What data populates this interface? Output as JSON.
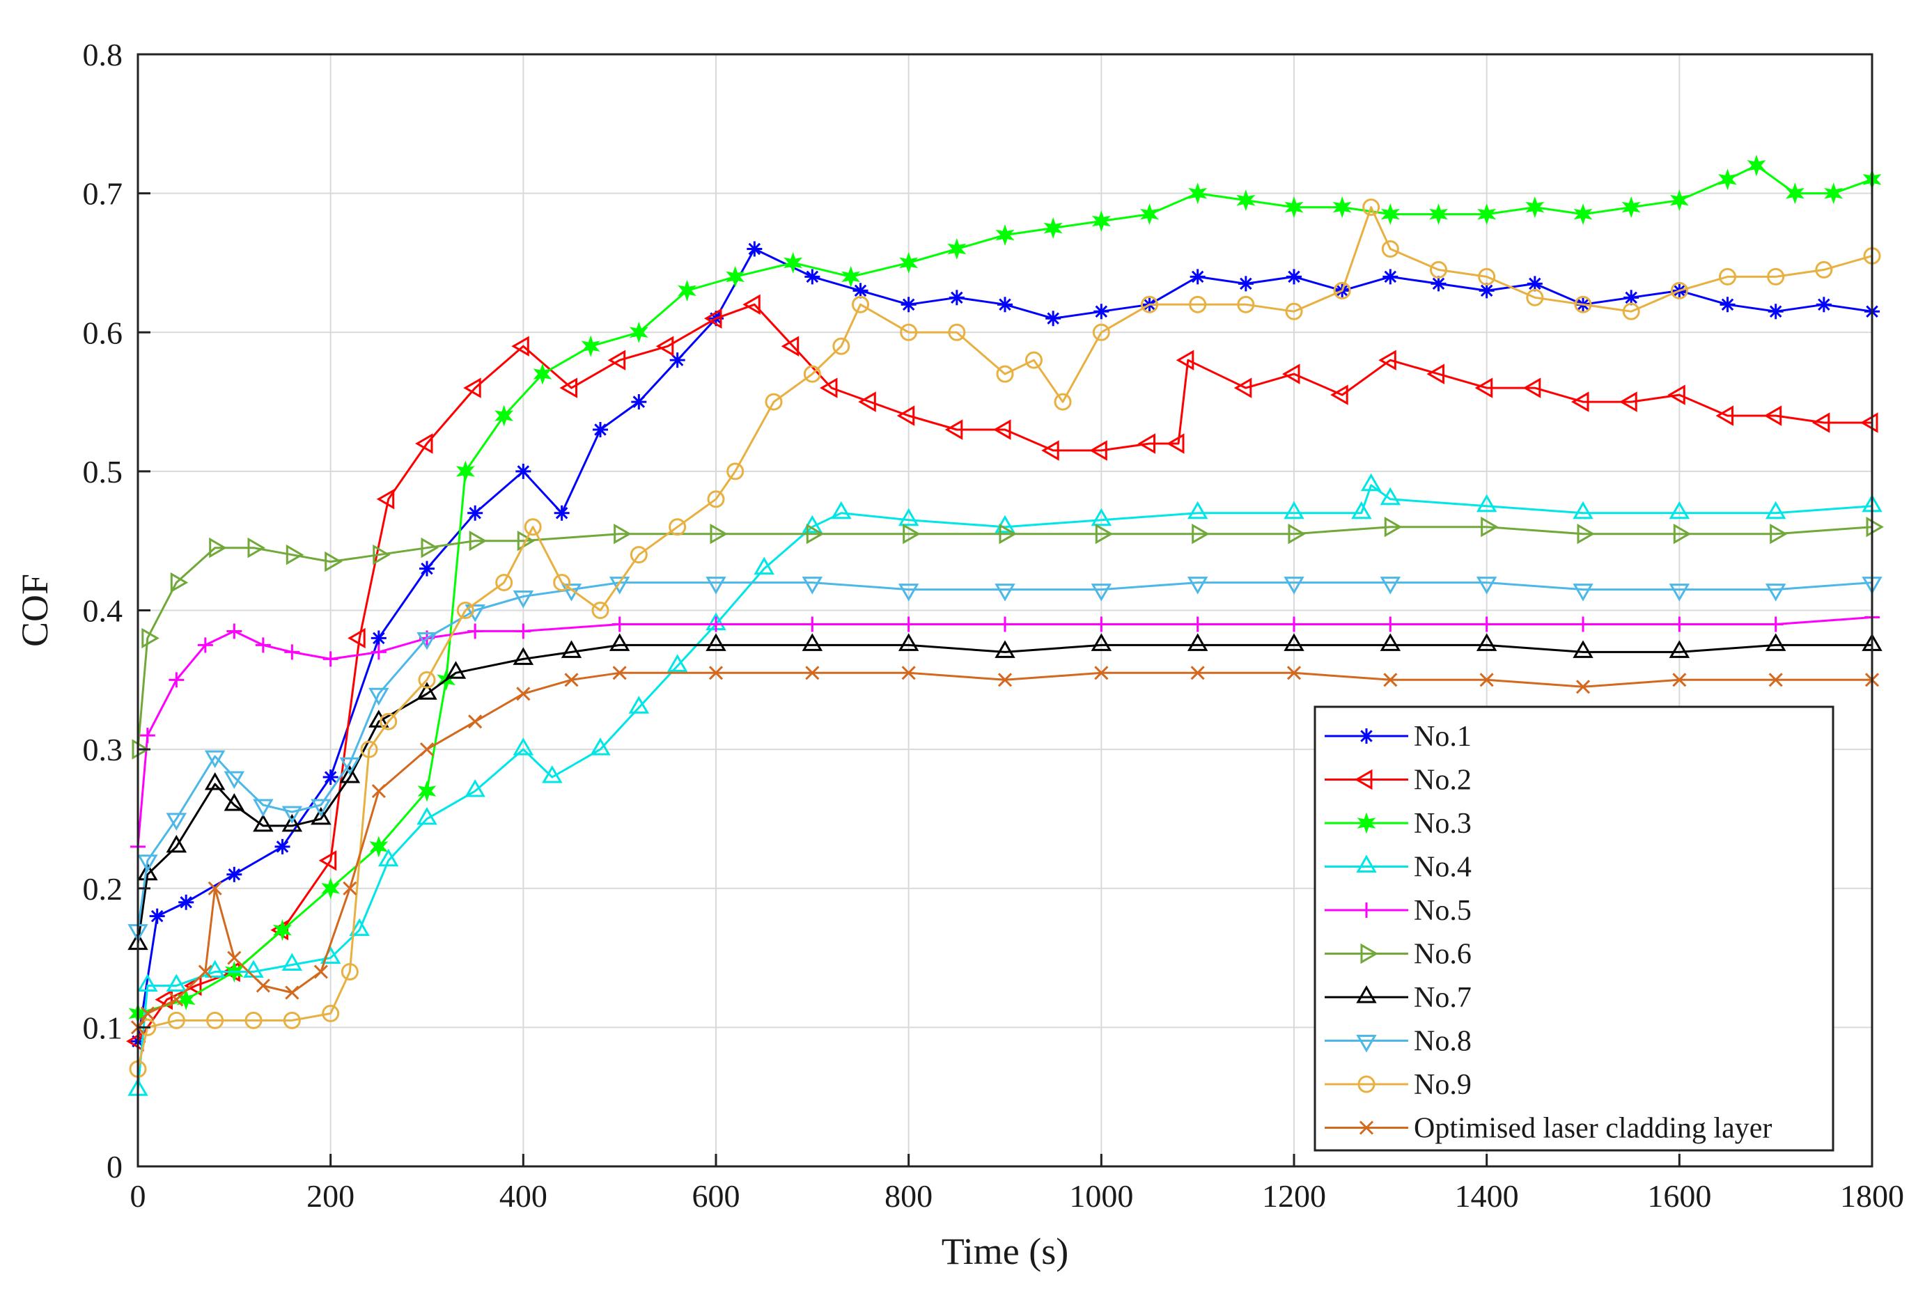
{
  "chart_data": {
    "type": "line",
    "title": "",
    "xlabel": "Time (s)",
    "ylabel": "COF",
    "xlim": [
      0,
      1800
    ],
    "ylim": [
      0,
      0.8
    ],
    "grid": true,
    "legend_position": "bottom-right",
    "x_ticks": [
      0,
      200,
      400,
      600,
      800,
      1000,
      1200,
      1400,
      1600,
      1800
    ],
    "x_tick_labels": [
      "0",
      "200",
      "400",
      "600",
      "800",
      "1000",
      "1200",
      "1400",
      "1600",
      "1800"
    ],
    "y_ticks": [
      0,
      0.1,
      0.2,
      0.3,
      0.4,
      0.5,
      0.6,
      0.7,
      0.8
    ],
    "y_tick_labels": [
      "0",
      "0.1",
      "0.2",
      "0.3",
      "0.4",
      "0.5",
      "0.6",
      "0.7",
      "0.8"
    ],
    "series": [
      {
        "name": "No.1",
        "color": "#0000ff",
        "marker": "star",
        "x": [
          0,
          20,
          50,
          100,
          150,
          200,
          250,
          300,
          350,
          400,
          440,
          480,
          520,
          560,
          600,
          640,
          700,
          750,
          800,
          850,
          900,
          950,
          1000,
          1050,
          1100,
          1150,
          1200,
          1250,
          1300,
          1350,
          1400,
          1450,
          1500,
          1550,
          1600,
          1650,
          1700,
          1750,
          1800
        ],
        "y": [
          0.09,
          0.18,
          0.19,
          0.21,
          0.23,
          0.28,
          0.38,
          0.43,
          0.47,
          0.5,
          0.47,
          0.53,
          0.55,
          0.58,
          0.61,
          0.66,
          0.64,
          0.63,
          0.62,
          0.625,
          0.62,
          0.61,
          0.615,
          0.62,
          0.64,
          0.635,
          0.64,
          0.63,
          0.64,
          0.635,
          0.63,
          0.635,
          0.62,
          0.625,
          0.63,
          0.62,
          0.615,
          0.62,
          0.615
        ]
      },
      {
        "name": "No.2",
        "color": "#ff0000",
        "marker": "triangle-left",
        "x": [
          0,
          30,
          60,
          100,
          150,
          200,
          230,
          260,
          300,
          350,
          400,
          450,
          500,
          550,
          600,
          640,
          680,
          720,
          760,
          800,
          850,
          900,
          950,
          1000,
          1050,
          1080,
          1090,
          1150,
          1200,
          1250,
          1300,
          1350,
          1400,
          1450,
          1500,
          1550,
          1600,
          1650,
          1700,
          1750,
          1800
        ],
        "y": [
          0.09,
          0.12,
          0.13,
          0.14,
          0.17,
          0.22,
          0.38,
          0.48,
          0.52,
          0.56,
          0.59,
          0.56,
          0.58,
          0.59,
          0.61,
          0.62,
          0.59,
          0.56,
          0.55,
          0.54,
          0.53,
          0.53,
          0.515,
          0.515,
          0.52,
          0.52,
          0.58,
          0.56,
          0.57,
          0.555,
          0.58,
          0.57,
          0.56,
          0.56,
          0.55,
          0.55,
          0.555,
          0.54,
          0.54,
          0.535,
          0.535
        ]
      },
      {
        "name": "No.3",
        "color": "#00ff00",
        "marker": "hexagram",
        "x": [
          0,
          50,
          100,
          150,
          200,
          250,
          300,
          320,
          340,
          380,
          420,
          470,
          520,
          570,
          620,
          680,
          740,
          800,
          850,
          900,
          950,
          1000,
          1050,
          1100,
          1150,
          1200,
          1250,
          1300,
          1350,
          1400,
          1450,
          1500,
          1550,
          1600,
          1650,
          1680,
          1720,
          1760,
          1800
        ],
        "y": [
          0.11,
          0.12,
          0.14,
          0.17,
          0.2,
          0.23,
          0.27,
          0.35,
          0.5,
          0.54,
          0.57,
          0.59,
          0.6,
          0.63,
          0.64,
          0.65,
          0.64,
          0.65,
          0.66,
          0.67,
          0.675,
          0.68,
          0.685,
          0.7,
          0.695,
          0.69,
          0.69,
          0.685,
          0.685,
          0.685,
          0.69,
          0.685,
          0.69,
          0.695,
          0.71,
          0.72,
          0.7,
          0.7,
          0.71
        ]
      },
      {
        "name": "No.4",
        "color": "#00e6e6",
        "marker": "triangle-up",
        "x": [
          0,
          10,
          40,
          80,
          120,
          160,
          200,
          230,
          260,
          300,
          350,
          400,
          430,
          480,
          520,
          560,
          600,
          650,
          700,
          730,
          800,
          900,
          1000,
          1100,
          1200,
          1270,
          1280,
          1300,
          1400,
          1500,
          1600,
          1700,
          1800
        ],
        "y": [
          0.055,
          0.13,
          0.13,
          0.14,
          0.14,
          0.145,
          0.15,
          0.17,
          0.22,
          0.25,
          0.27,
          0.3,
          0.28,
          0.3,
          0.33,
          0.36,
          0.39,
          0.43,
          0.46,
          0.47,
          0.465,
          0.46,
          0.465,
          0.47,
          0.47,
          0.47,
          0.49,
          0.48,
          0.475,
          0.47,
          0.47,
          0.47,
          0.475
        ]
      },
      {
        "name": "No.5",
        "color": "#ff00ff",
        "marker": "plus",
        "x": [
          0,
          10,
          40,
          70,
          100,
          130,
          160,
          200,
          250,
          300,
          350,
          400,
          500,
          600,
          700,
          800,
          900,
          1000,
          1100,
          1200,
          1300,
          1400,
          1500,
          1600,
          1700,
          1800
        ],
        "y": [
          0.23,
          0.31,
          0.35,
          0.375,
          0.385,
          0.375,
          0.37,
          0.365,
          0.37,
          0.38,
          0.385,
          0.385,
          0.39,
          0.39,
          0.39,
          0.39,
          0.39,
          0.39,
          0.39,
          0.39,
          0.39,
          0.39,
          0.39,
          0.39,
          0.39,
          0.395
        ]
      },
      {
        "name": "No.6",
        "color": "#70a93a",
        "marker": "triangle-right",
        "x": [
          0,
          10,
          40,
          80,
          120,
          160,
          200,
          250,
          300,
          350,
          400,
          500,
          600,
          700,
          800,
          900,
          1000,
          1100,
          1200,
          1300,
          1400,
          1500,
          1600,
          1700,
          1800
        ],
        "y": [
          0.3,
          0.38,
          0.42,
          0.445,
          0.445,
          0.44,
          0.435,
          0.44,
          0.445,
          0.45,
          0.45,
          0.455,
          0.455,
          0.455,
          0.455,
          0.455,
          0.455,
          0.455,
          0.455,
          0.46,
          0.46,
          0.455,
          0.455,
          0.455,
          0.46
        ]
      },
      {
        "name": "No.7",
        "color": "#000000",
        "marker": "triangle-up",
        "x": [
          0,
          10,
          40,
          80,
          100,
          130,
          160,
          190,
          220,
          250,
          300,
          330,
          400,
          450,
          500,
          600,
          700,
          800,
          900,
          1000,
          1100,
          1200,
          1300,
          1400,
          1500,
          1600,
          1700,
          1800
        ],
        "y": [
          0.16,
          0.21,
          0.23,
          0.275,
          0.26,
          0.245,
          0.245,
          0.25,
          0.28,
          0.32,
          0.34,
          0.355,
          0.365,
          0.37,
          0.375,
          0.375,
          0.375,
          0.375,
          0.37,
          0.375,
          0.375,
          0.375,
          0.375,
          0.375,
          0.37,
          0.37,
          0.375,
          0.375
        ]
      },
      {
        "name": "No.8",
        "color": "#4db8e8",
        "marker": "triangle-down",
        "x": [
          0,
          10,
          40,
          80,
          100,
          130,
          160,
          190,
          220,
          250,
          300,
          350,
          400,
          450,
          500,
          600,
          700,
          800,
          900,
          1000,
          1100,
          1200,
          1300,
          1400,
          1500,
          1600,
          1700,
          1800
        ],
        "y": [
          0.17,
          0.22,
          0.25,
          0.295,
          0.28,
          0.26,
          0.255,
          0.26,
          0.29,
          0.34,
          0.38,
          0.4,
          0.41,
          0.415,
          0.42,
          0.42,
          0.42,
          0.415,
          0.415,
          0.415,
          0.42,
          0.42,
          0.42,
          0.42,
          0.415,
          0.415,
          0.415,
          0.42
        ]
      },
      {
        "name": "No.9",
        "color": "#e8b040",
        "marker": "circle",
        "x": [
          0,
          10,
          40,
          80,
          120,
          160,
          200,
          220,
          240,
          260,
          300,
          340,
          380,
          410,
          440,
          480,
          520,
          560,
          600,
          620,
          660,
          700,
          730,
          750,
          800,
          850,
          900,
          930,
          960,
          1000,
          1050,
          1100,
          1150,
          1200,
          1250,
          1280,
          1300,
          1350,
          1400,
          1450,
          1500,
          1550,
          1600,
          1650,
          1700,
          1750,
          1800
        ],
        "y": [
          0.07,
          0.1,
          0.105,
          0.105,
          0.105,
          0.105,
          0.11,
          0.14,
          0.3,
          0.32,
          0.35,
          0.4,
          0.42,
          0.46,
          0.42,
          0.4,
          0.44,
          0.46,
          0.48,
          0.5,
          0.55,
          0.57,
          0.59,
          0.62,
          0.6,
          0.6,
          0.57,
          0.58,
          0.55,
          0.6,
          0.62,
          0.62,
          0.62,
          0.615,
          0.63,
          0.69,
          0.66,
          0.645,
          0.64,
          0.625,
          0.62,
          0.615,
          0.63,
          0.64,
          0.64,
          0.645,
          0.655
        ]
      },
      {
        "name": "Optimised laser cladding layer",
        "color": "#d2691e",
        "marker": "x",
        "x": [
          0,
          10,
          40,
          70,
          80,
          100,
          130,
          160,
          190,
          220,
          250,
          300,
          350,
          400,
          450,
          500,
          600,
          700,
          800,
          900,
          1000,
          1100,
          1200,
          1300,
          1400,
          1500,
          1600,
          1700,
          1800
        ],
        "y": [
          0.1,
          0.11,
          0.12,
          0.14,
          0.2,
          0.15,
          0.13,
          0.125,
          0.14,
          0.2,
          0.27,
          0.3,
          0.32,
          0.34,
          0.35,
          0.355,
          0.355,
          0.355,
          0.355,
          0.35,
          0.355,
          0.355,
          0.355,
          0.35,
          0.35,
          0.345,
          0.35,
          0.35,
          0.35
        ]
      }
    ]
  }
}
